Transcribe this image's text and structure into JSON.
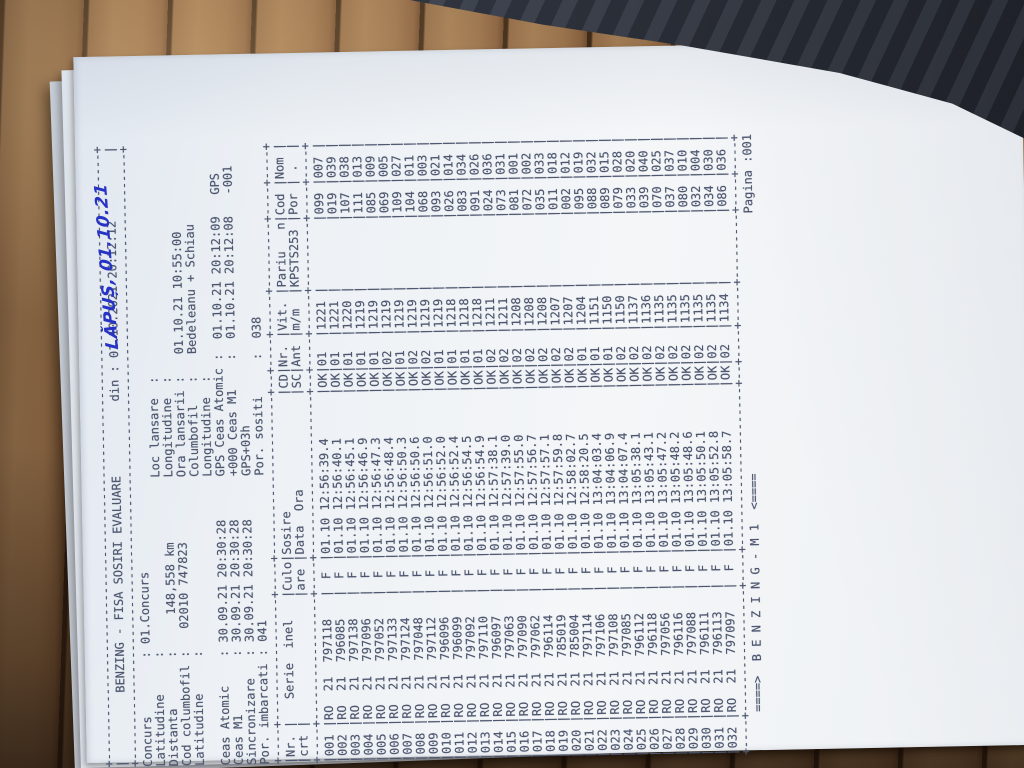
{
  "photo": {
    "handwritten_note": "LĂPUȘ, 01.10.21",
    "wood_color": "#8a6142",
    "cloth_color": "#2a2e37",
    "paper_color": "#f0f2f5",
    "ink_color": "#4d566e",
    "pen_color": "#2633c4"
  },
  "doc": {
    "box_border": "+------------------------------------------------------------------------------------+",
    "title": "BENZING - FISA SOSIRI EVALUARE",
    "printed": "din : 01.10.2021 20:12:12",
    "header_lines": [
      "Concurs        : 01.Concurs",
      "Latitudine     :                        Loc lansare  :",
      "Distanta       :     148,558 km         Longitudine  :",
      "Cod columbofil :   02010 747823         Ora lansarii :   01.10.21 10:55:00",
      "Latitudine     :                        Columbofil   :   Bedeleanu + Schiau",
      "                                        Longitudine  :",
      "Ceas Atomic    : 30.09.21 20:30:28      GPS Ceas Atomic :  01.10.21 20:12:09   GPS",
      "Ceas M1        : 30.09.21 20:30:28      +000 Ceas M1    :  01.10.21 20:12:08   -001",
      "Sincronizare   : 30.09.21 20:30:28      GPS+03h",
      "Por. imbarcati : 041                    Por. sositi     :  038"
    ],
    "table": {
      "border": "+----+-----------------+----+----------------------+--+----+-----+---------+----+----+",
      "head1": [
        "Nr.",
        "   Serie  inel",
        "Culo",
        "Sosire",
        "CD",
        "Nr.",
        "Vit.",
        "Pariu   n",
        "Cod",
        "Nom"
      ],
      "head2": [
        "crt",
        "",
        "are",
        "Data  Ora",
        "SC",
        "Ant",
        "m/m",
        "KPSTS253",
        "Por",
        " ."
      ],
      "rows": [
        {
          "nr": "001",
          "co": "RO",
          "yr": "21",
          "serie": "797118",
          "sex": "F",
          "date": "01.10",
          "time": "12:56:39.4",
          "cd": "OK",
          "ant": "01",
          "vit": "1221",
          "pariu": "",
          "cod": "099",
          "nom": "007"
        },
        {
          "nr": "002",
          "co": "RO",
          "yr": "21",
          "serie": "796085",
          "sex": "F",
          "date": "01.10",
          "time": "12:56:40.1",
          "cd": "OK",
          "ant": "01",
          "vit": "1221",
          "pariu": "",
          "cod": "019",
          "nom": "039"
        },
        {
          "nr": "003",
          "co": "RO",
          "yr": "21",
          "serie": "797138",
          "sex": "F",
          "date": "01.10",
          "time": "12:56:45.1",
          "cd": "OK",
          "ant": "01",
          "vit": "1220",
          "pariu": "",
          "cod": "107",
          "nom": "038"
        },
        {
          "nr": "004",
          "co": "RO",
          "yr": "21",
          "serie": "797096",
          "sex": "F",
          "date": "01.10",
          "time": "12:56:46.9",
          "cd": "OK",
          "ant": "01",
          "vit": "1219",
          "pariu": "",
          "cod": "111",
          "nom": "013"
        },
        {
          "nr": "005",
          "co": "RO",
          "yr": "21",
          "serie": "797052",
          "sex": "F",
          "date": "01.10",
          "time": "12:56:47.3",
          "cd": "OK",
          "ant": "01",
          "vit": "1219",
          "pariu": "",
          "cod": "085",
          "nom": "009"
        },
        {
          "nr": "006",
          "co": "RO",
          "yr": "21",
          "serie": "797133",
          "sex": "F",
          "date": "01.10",
          "time": "12:56:48.4",
          "cd": "OK",
          "ant": "02",
          "vit": "1219",
          "pariu": "",
          "cod": "069",
          "nom": "005"
        },
        {
          "nr": "007",
          "co": "RO",
          "yr": "21",
          "serie": "797124",
          "sex": "F",
          "date": "01.10",
          "time": "12:56:50.3",
          "cd": "OK",
          "ant": "01",
          "vit": "1219",
          "pariu": "",
          "cod": "109",
          "nom": "027"
        },
        {
          "nr": "008",
          "co": "RO",
          "yr": "21",
          "serie": "797048",
          "sex": "F",
          "date": "01.10",
          "time": "12:56:50.6",
          "cd": "OK",
          "ant": "02",
          "vit": "1219",
          "pariu": "",
          "cod": "104",
          "nom": "011"
        },
        {
          "nr": "009",
          "co": "RO",
          "yr": "21",
          "serie": "797112",
          "sex": "F",
          "date": "01.10",
          "time": "12:56:51.0",
          "cd": "OK",
          "ant": "02",
          "vit": "1219",
          "pariu": "",
          "cod": "068",
          "nom": "003"
        },
        {
          "nr": "010",
          "co": "RO",
          "yr": "21",
          "serie": "796096",
          "sex": "F",
          "date": "01.10",
          "time": "12:56:52.0",
          "cd": "OK",
          "ant": "01",
          "vit": "1219",
          "pariu": "",
          "cod": "093",
          "nom": "021"
        },
        {
          "nr": "011",
          "co": "RO",
          "yr": "21",
          "serie": "796099",
          "sex": "F",
          "date": "01.10",
          "time": "12:56:52.4",
          "cd": "OK",
          "ant": "01",
          "vit": "1218",
          "pariu": "",
          "cod": "026",
          "nom": "014"
        },
        {
          "nr": "012",
          "co": "RO",
          "yr": "21",
          "serie": "797092",
          "sex": "F",
          "date": "01.10",
          "time": "12:56:54.5",
          "cd": "OK",
          "ant": "01",
          "vit": "1218",
          "pariu": "",
          "cod": "083",
          "nom": "034"
        },
        {
          "nr": "013",
          "co": "RO",
          "yr": "21",
          "serie": "797110",
          "sex": "F",
          "date": "01.10",
          "time": "12:56:54.9",
          "cd": "OK",
          "ant": "01",
          "vit": "1218",
          "pariu": "",
          "cod": "091",
          "nom": "026"
        },
        {
          "nr": "014",
          "co": "RO",
          "yr": "21",
          "serie": "796097",
          "sex": "F",
          "date": "01.10",
          "time": "12:57:38.1",
          "cd": "OK",
          "ant": "02",
          "vit": "1211",
          "pariu": "",
          "cod": "024",
          "nom": "036"
        },
        {
          "nr": "015",
          "co": "RO",
          "yr": "21",
          "serie": "797063",
          "sex": "F",
          "date": "01.10",
          "time": "12:57:39.0",
          "cd": "OK",
          "ant": "02",
          "vit": "1211",
          "pariu": "",
          "cod": "073",
          "nom": "031"
        },
        {
          "nr": "016",
          "co": "RO",
          "yr": "21",
          "serie": "797090",
          "sex": "F",
          "date": "01.10",
          "time": "12:57:55.0",
          "cd": "OK",
          "ant": "02",
          "vit": "1208",
          "pariu": "",
          "cod": "081",
          "nom": "001"
        },
        {
          "nr": "017",
          "co": "RO",
          "yr": "21",
          "serie": "797062",
          "sex": "F",
          "date": "01.10",
          "time": "12:57:56.7",
          "cd": "OK",
          "ant": "02",
          "vit": "1208",
          "pariu": "",
          "cod": "072",
          "nom": "002"
        },
        {
          "nr": "018",
          "co": "RO",
          "yr": "21",
          "serie": "796114",
          "sex": "F",
          "date": "01.10",
          "time": "12:57:57.1",
          "cd": "OK",
          "ant": "02",
          "vit": "1208",
          "pariu": "",
          "cod": "035",
          "nom": "033"
        },
        {
          "nr": "019",
          "co": "RO",
          "yr": "21",
          "serie": "785019",
          "sex": "F",
          "date": "01.10",
          "time": "12:57:59.8",
          "cd": "OK",
          "ant": "02",
          "vit": "1207",
          "pariu": "",
          "cod": "011",
          "nom": "018"
        },
        {
          "nr": "020",
          "co": "RO",
          "yr": "21",
          "serie": "785004",
          "sex": "F",
          "date": "01.10",
          "time": "12:58:02.7",
          "cd": "OK",
          "ant": "02",
          "vit": "1207",
          "pariu": "",
          "cod": "002",
          "nom": "012"
        },
        {
          "nr": "021",
          "co": "RO",
          "yr": "21",
          "serie": "797114",
          "sex": "F",
          "date": "01.10",
          "time": "12:58:20.5",
          "cd": "OK",
          "ant": "01",
          "vit": "1204",
          "pariu": "",
          "cod": "095",
          "nom": "019"
        },
        {
          "nr": "022",
          "co": "RO",
          "yr": "21",
          "serie": "797106",
          "sex": "F",
          "date": "01.10",
          "time": "13:04:03.4",
          "cd": "OK",
          "ant": "01",
          "vit": "1151",
          "pariu": "",
          "cod": "088",
          "nom": "032"
        },
        {
          "nr": "023",
          "co": "RO",
          "yr": "21",
          "serie": "797108",
          "sex": "F",
          "date": "01.10",
          "time": "13:04:06.9",
          "cd": "OK",
          "ant": "01",
          "vit": "1150",
          "pariu": "",
          "cod": "089",
          "nom": "015"
        },
        {
          "nr": "024",
          "co": "RO",
          "yr": "21",
          "serie": "797085",
          "sex": "F",
          "date": "01.10",
          "time": "13:04:07.4",
          "cd": "OK",
          "ant": "02",
          "vit": "1150",
          "pariu": "",
          "cod": "079",
          "nom": "028"
        },
        {
          "nr": "025",
          "co": "RO",
          "yr": "21",
          "serie": "796112",
          "sex": "F",
          "date": "01.10",
          "time": "13:05:38.1",
          "cd": "OK",
          "ant": "02",
          "vit": "1137",
          "pariu": "",
          "cod": "033",
          "nom": "020"
        },
        {
          "nr": "026",
          "co": "RO",
          "yr": "21",
          "serie": "796118",
          "sex": "F",
          "date": "01.10",
          "time": "13:05:43.1",
          "cd": "OK",
          "ant": "02",
          "vit": "1136",
          "pariu": "",
          "cod": "039",
          "nom": "040"
        },
        {
          "nr": "027",
          "co": "RO",
          "yr": "21",
          "serie": "797056",
          "sex": "F",
          "date": "01.10",
          "time": "13:05:47.2",
          "cd": "OK",
          "ant": "02",
          "vit": "1135",
          "pariu": "",
          "cod": "070",
          "nom": "025"
        },
        {
          "nr": "028",
          "co": "RO",
          "yr": "21",
          "serie": "796116",
          "sex": "F",
          "date": "01.10",
          "time": "13:05:48.2",
          "cd": "OK",
          "ant": "02",
          "vit": "1135",
          "pariu": "",
          "cod": "037",
          "nom": "037"
        },
        {
          "nr": "029",
          "co": "RO",
          "yr": "21",
          "serie": "797088",
          "sex": "F",
          "date": "01.10",
          "time": "13:05:48.6",
          "cd": "OK",
          "ant": "02",
          "vit": "1135",
          "pariu": "",
          "cod": "080",
          "nom": "010"
        },
        {
          "nr": "030",
          "co": "RO",
          "yr": "21",
          "serie": "796111",
          "sex": "F",
          "date": "01.10",
          "time": "13:05:50.1",
          "cd": "OK",
          "ant": "02",
          "vit": "1135",
          "pariu": "",
          "cod": "032",
          "nom": "004"
        },
        {
          "nr": "031",
          "co": "RO",
          "yr": "21",
          "serie": "796113",
          "sex": "F",
          "date": "01.10",
          "time": "13:05:52.8",
          "cd": "OK",
          "ant": "02",
          "vit": "1135",
          "pariu": "",
          "cod": "034",
          "nom": "030"
        },
        {
          "nr": "032",
          "co": "RO",
          "yr": "21",
          "serie": "797097",
          "sex": "F",
          "date": "01.10",
          "time": "13:05:58.7",
          "cd": "OK",
          "ant": "02",
          "vit": "1134",
          "pariu": "",
          "cod": "086",
          "nom": "036"
        }
      ]
    },
    "footer": {
      "benzing": "====>  B E N Z I N G - M 1  <====",
      "pagina": "Pagina :001"
    }
  }
}
